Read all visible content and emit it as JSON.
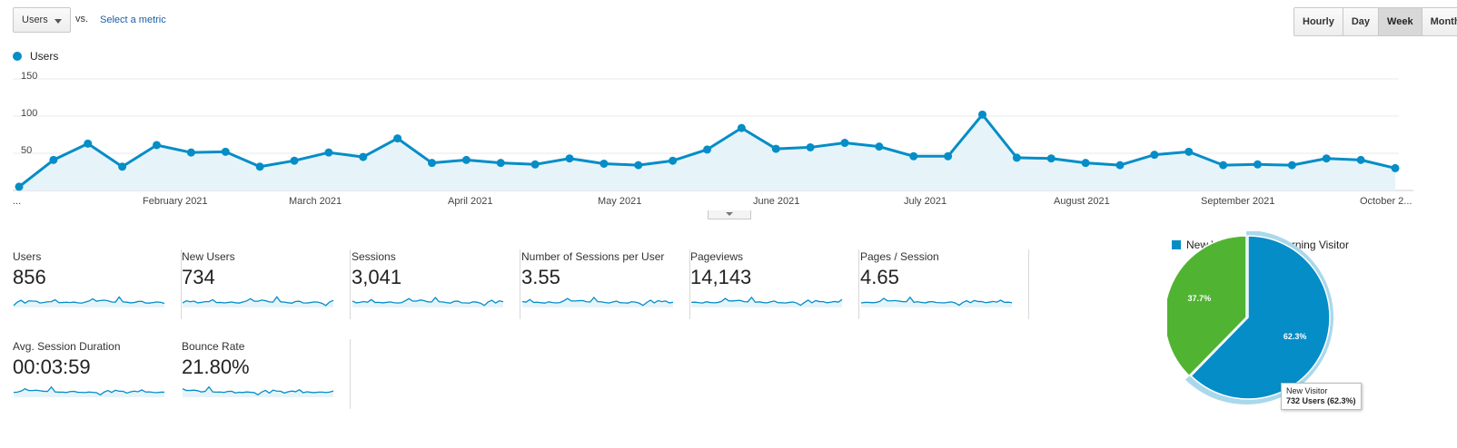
{
  "controls": {
    "metric_select_label": "Users",
    "vs_label": "vs.",
    "select_metric_link": "Select a metric",
    "periods": [
      "Hourly",
      "Day",
      "Week",
      "Month"
    ],
    "active_period": "Week"
  },
  "colors": {
    "primary": "#058dc7",
    "secondary": "#50b432",
    "fill": "#e6f4fa",
    "grid": "#e8e8e8"
  },
  "chart_data": {
    "type": "area",
    "series": [
      {
        "name": "Users",
        "values": [
          5,
          41,
          63,
          32,
          61,
          51,
          52,
          32,
          40,
          51,
          45,
          70,
          37,
          41,
          37,
          35,
          43,
          36,
          34,
          40,
          55,
          84,
          56,
          58,
          64,
          59,
          46,
          46,
          102,
          44,
          43,
          37,
          34,
          48,
          52,
          34,
          35,
          34,
          43,
          41,
          30
        ]
      }
    ],
    "ylim": [
      0,
      150
    ],
    "yticks": [
      "150",
      "100",
      "50"
    ],
    "x_tick_labels": [
      "...",
      "February 2021",
      "March 2021",
      "April 2021",
      "May 2021",
      "June 2021",
      "July 2021",
      "August 2021",
      "September 2021",
      "October 2..."
    ],
    "legend": "Users"
  },
  "scorecards": [
    {
      "name": "Users",
      "value": "856"
    },
    {
      "name": "New Users",
      "value": "734"
    },
    {
      "name": "Sessions",
      "value": "3,041"
    },
    {
      "name": "Number of Sessions per User",
      "value": "3.55"
    },
    {
      "name": "Pageviews",
      "value": "14,143"
    },
    {
      "name": "Pages / Session",
      "value": "4.65"
    },
    {
      "name": "Avg. Session Duration",
      "value": "00:03:59"
    },
    {
      "name": "Bounce Rate",
      "value": "21.80%"
    }
  ],
  "pie": {
    "type": "pie",
    "slices": [
      {
        "label": "New Visitor",
        "percent": 62.3,
        "display": "62.3%",
        "color": "#058dc7"
      },
      {
        "label": "Returning Visitor",
        "percent": 37.7,
        "display": "37.7%",
        "color": "#50b432"
      }
    ],
    "tooltip": {
      "line1": "New Visitor",
      "line2": "732 Users (62.3%)"
    }
  }
}
